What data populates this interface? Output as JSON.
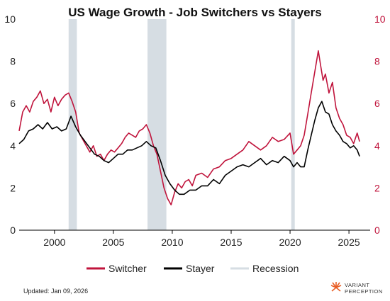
{
  "chart_data": {
    "type": "line",
    "title": "US Wage Growth - Job Switchers vs Stayers",
    "xlabel": "",
    "ylabel": "",
    "xlim": [
      1997,
      2026.8
    ],
    "ylim": [
      0,
      10
    ],
    "y_ticks": [
      0,
      2,
      4,
      6,
      8,
      10
    ],
    "y_ticks_right": [
      0,
      2,
      4,
      6,
      8,
      10
    ],
    "x_ticks": [
      2000,
      2005,
      2010,
      2015,
      2020,
      2025
    ],
    "grid": false,
    "legend_position": "bottom",
    "recessions": [
      {
        "start": 2001.2,
        "end": 2001.9
      },
      {
        "start": 2007.9,
        "end": 2009.5
      },
      {
        "start": 2020.1,
        "end": 2020.4
      }
    ],
    "series": [
      {
        "name": "Switcher",
        "color": "#c0143c",
        "x": [
          1997.0,
          1997.3,
          1997.6,
          1997.9,
          1998.2,
          1998.5,
          1998.8,
          1999.1,
          1999.4,
          1999.7,
          2000.0,
          2000.3,
          2000.6,
          2000.9,
          2001.2,
          2001.5,
          2001.8,
          2002.1,
          2002.4,
          2002.7,
          2003.0,
          2003.3,
          2003.6,
          2003.9,
          2004.2,
          2004.5,
          2004.8,
          2005.1,
          2005.4,
          2005.7,
          2006.0,
          2006.3,
          2006.6,
          2006.9,
          2007.2,
          2007.5,
          2007.8,
          2008.1,
          2008.4,
          2008.7,
          2009.0,
          2009.3,
          2009.6,
          2009.9,
          2010.2,
          2010.5,
          2010.8,
          2011.1,
          2011.4,
          2011.7,
          2012.0,
          2012.5,
          2013.0,
          2013.5,
          2014.0,
          2014.5,
          2015.0,
          2015.5,
          2016.0,
          2016.5,
          2017.0,
          2017.5,
          2018.0,
          2018.5,
          2019.0,
          2019.5,
          2020.0,
          2020.3,
          2020.6,
          2020.9,
          2021.2,
          2021.5,
          2021.8,
          2022.1,
          2022.4,
          2022.6,
          2022.8,
          2023.0,
          2023.3,
          2023.6,
          2023.9,
          2024.2,
          2024.5,
          2024.8,
          2025.1,
          2025.4,
          2025.7,
          2025.9
        ],
        "values": [
          4.7,
          5.6,
          5.9,
          5.6,
          6.1,
          6.3,
          6.6,
          6.0,
          6.2,
          5.6,
          6.3,
          5.9,
          6.2,
          6.4,
          6.5,
          6.1,
          5.6,
          4.6,
          4.3,
          4.0,
          3.7,
          4.0,
          3.5,
          3.6,
          3.3,
          3.6,
          3.8,
          3.7,
          3.9,
          4.1,
          4.4,
          4.6,
          4.5,
          4.4,
          4.7,
          4.8,
          5.0,
          4.6,
          4.0,
          3.6,
          2.8,
          2.0,
          1.5,
          1.2,
          1.8,
          2.2,
          2.0,
          2.3,
          2.4,
          2.1,
          2.6,
          2.7,
          2.5,
          2.9,
          3.0,
          3.3,
          3.4,
          3.6,
          3.8,
          4.2,
          4.0,
          3.8,
          4.0,
          4.4,
          4.2,
          4.3,
          4.6,
          3.6,
          3.8,
          4.0,
          4.5,
          5.5,
          6.5,
          7.5,
          8.5,
          7.8,
          7.1,
          7.4,
          6.5,
          7.0,
          5.8,
          5.3,
          5.0,
          4.5,
          4.4,
          4.1,
          4.6,
          4.2
        ]
      },
      {
        "name": "Stayer",
        "color": "#000000",
        "x": [
          1997.0,
          1997.4,
          1997.8,
          1998.2,
          1998.6,
          1999.0,
          1999.4,
          1999.8,
          2000.2,
          2000.6,
          2001.0,
          2001.4,
          2001.8,
          2002.2,
          2002.6,
          2003.0,
          2003.4,
          2003.8,
          2004.2,
          2004.6,
          2005.0,
          2005.4,
          2005.8,
          2006.2,
          2006.6,
          2007.0,
          2007.4,
          2007.8,
          2008.2,
          2008.6,
          2009.0,
          2009.4,
          2009.8,
          2010.2,
          2010.6,
          2011.0,
          2011.5,
          2012.0,
          2012.5,
          2013.0,
          2013.5,
          2014.0,
          2014.5,
          2015.0,
          2015.5,
          2016.0,
          2016.5,
          2017.0,
          2017.5,
          2018.0,
          2018.5,
          2019.0,
          2019.5,
          2020.0,
          2020.3,
          2020.6,
          2020.9,
          2021.2,
          2021.5,
          2021.8,
          2022.1,
          2022.4,
          2022.7,
          2023.0,
          2023.3,
          2023.6,
          2023.9,
          2024.2,
          2024.5,
          2024.8,
          2025.1,
          2025.4,
          2025.7,
          2025.9
        ],
        "values": [
          4.1,
          4.3,
          4.7,
          4.8,
          5.0,
          4.8,
          5.1,
          4.8,
          4.9,
          4.7,
          4.8,
          5.4,
          4.9,
          4.5,
          4.2,
          3.9,
          3.6,
          3.5,
          3.3,
          3.2,
          3.4,
          3.6,
          3.6,
          3.8,
          3.8,
          3.9,
          4.0,
          4.2,
          4.0,
          3.9,
          3.3,
          2.6,
          2.2,
          1.9,
          1.7,
          1.7,
          1.9,
          1.9,
          2.1,
          2.1,
          2.4,
          2.2,
          2.6,
          2.8,
          3.0,
          3.1,
          3.0,
          3.2,
          3.4,
          3.1,
          3.3,
          3.2,
          3.5,
          3.3,
          3.0,
          3.2,
          3.0,
          3.0,
          3.8,
          4.5,
          5.2,
          5.8,
          6.1,
          5.6,
          5.5,
          5.0,
          4.7,
          4.5,
          4.2,
          4.1,
          3.9,
          4.0,
          3.8,
          3.5
        ]
      },
      {
        "name": "Recession",
        "color": "#d6dde3"
      }
    ]
  },
  "footer": {
    "updated": "Updated: Jan 09, 2026",
    "brand_line1": "VARIANT",
    "brand_line2": "PERCEPTION"
  }
}
